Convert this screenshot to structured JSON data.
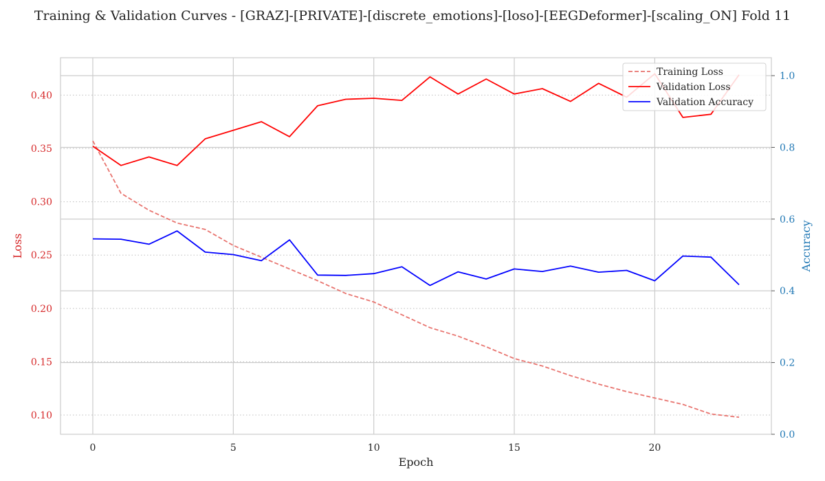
{
  "chart_data": {
    "type": "line",
    "title": "Training & Validation Curves - [GRAZ]-[PRIVATE]-[discrete_emotions]-[loso]-[EEGDeformer]-[scaling_ON] Fold 11",
    "xlabel": "Epoch",
    "ylabel_left": "Loss",
    "ylabel_right": "Accuracy",
    "x": [
      0,
      1,
      2,
      3,
      4,
      5,
      6,
      7,
      8,
      9,
      10,
      11,
      12,
      13,
      14,
      15,
      16,
      17,
      18,
      19,
      20,
      21,
      22,
      23
    ],
    "xlim": [
      -1.15,
      24.15
    ],
    "ylim_left": [
      0.082,
      0.435
    ],
    "ylim_right": [
      0.0,
      1.05
    ],
    "xticks": [
      0,
      5,
      10,
      15,
      20
    ],
    "yticks_left": [
      0.1,
      0.15,
      0.2,
      0.25,
      0.3,
      0.35,
      0.4
    ],
    "yticks_right": [
      0.0,
      0.2,
      0.4,
      0.6,
      0.8,
      1.0
    ],
    "grid": true,
    "legend_position": "top-right",
    "series": [
      {
        "name": "Training Loss",
        "axis": "left",
        "style": "dashed",
        "color": "#e8736e",
        "values": [
          0.357,
          0.308,
          0.292,
          0.28,
          0.274,
          0.259,
          0.248,
          0.237,
          0.226,
          0.214,
          0.206,
          0.194,
          0.182,
          0.174,
          0.164,
          0.153,
          0.146,
          0.137,
          0.129,
          0.122,
          0.116,
          0.11,
          0.101,
          0.098
        ]
      },
      {
        "name": "Validation Loss",
        "axis": "left",
        "style": "solid",
        "color": "#ff0000",
        "values": [
          0.352,
          0.334,
          0.342,
          0.334,
          0.359,
          0.367,
          0.375,
          0.361,
          0.39,
          0.396,
          0.397,
          0.395,
          0.417,
          0.401,
          0.415,
          0.401,
          0.406,
          0.394,
          0.411,
          0.398,
          0.42,
          0.379,
          0.382,
          0.419
        ]
      },
      {
        "name": "Validation Accuracy",
        "axis": "right",
        "style": "solid",
        "color": "#0000ff",
        "values": [
          0.545,
          0.544,
          0.53,
          0.567,
          0.508,
          0.501,
          0.484,
          0.542,
          0.444,
          0.443,
          0.448,
          0.467,
          0.415,
          0.453,
          0.433,
          0.461,
          0.454,
          0.469,
          0.452,
          0.457,
          0.428,
          0.497,
          0.494,
          0.417
        ]
      }
    ],
    "colors": {
      "left_axis": "#d62728",
      "right_axis": "#1f77b4",
      "frame": "#cccccc",
      "grid": "#cfcfcf"
    }
  }
}
